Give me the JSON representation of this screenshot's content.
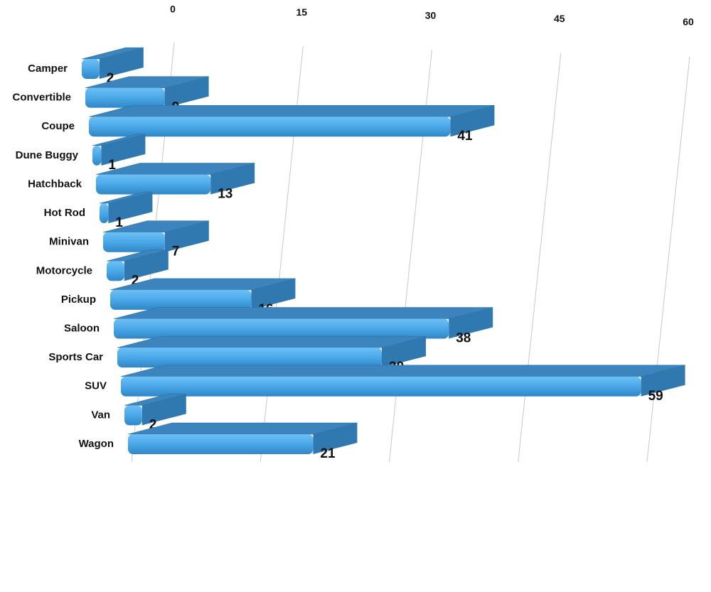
{
  "chart_data": {
    "type": "bar",
    "categories": [
      "Camper",
      "Convertible",
      "Coupe",
      "Dune Buggy",
      "Hatchback",
      "Hot Rod",
      "Minivan",
      "Motorcycle",
      "Pickup",
      "Saloon",
      "Sports Car",
      "SUV",
      "Van",
      "Wagon"
    ],
    "values": [
      2,
      9,
      41,
      1,
      13,
      1,
      7,
      2,
      16,
      38,
      30,
      59,
      2,
      21
    ],
    "color": "#4aa8e8",
    "xlim": [
      0,
      60
    ],
    "xticks": [
      0,
      15,
      30,
      45,
      60
    ],
    "grid": true
  }
}
